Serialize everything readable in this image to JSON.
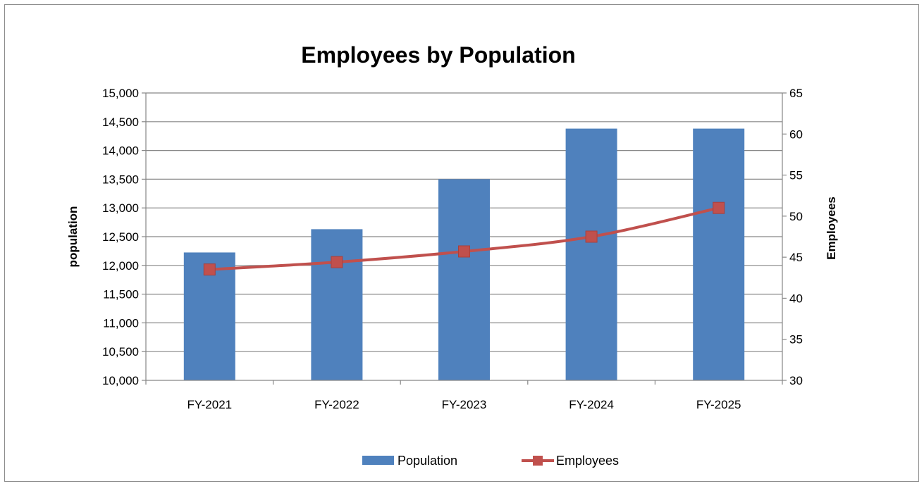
{
  "chart_data": {
    "type": "bar",
    "title": "Employees by Population",
    "categories": [
      "FY-2021",
      "FY-2022",
      "FY-2023",
      "FY-2024",
      "FY-2025"
    ],
    "series": [
      {
        "name": "Population",
        "type": "bar",
        "axis": "left",
        "color": "#4F81BD",
        "values": [
          12225,
          12630,
          13500,
          14380,
          14380
        ]
      },
      {
        "name": "Employees",
        "type": "line",
        "axis": "right",
        "color": "#C0504D",
        "marker": "square",
        "values": [
          43.5,
          44.4,
          45.7,
          47.5,
          51.0
        ]
      }
    ],
    "ylabel": "population",
    "y2label": "Employees",
    "ylim": [
      10000,
      15000
    ],
    "y2lim": [
      30,
      65
    ],
    "yticks": [
      "10,000",
      "10,500",
      "11,000",
      "11,500",
      "12,000",
      "12,500",
      "13,000",
      "13,500",
      "14,000",
      "14,500",
      "15,000"
    ],
    "y2ticks": [
      "30",
      "35",
      "40",
      "45",
      "50",
      "55",
      "60",
      "65"
    ],
    "grid": true,
    "legend": "bottom"
  }
}
